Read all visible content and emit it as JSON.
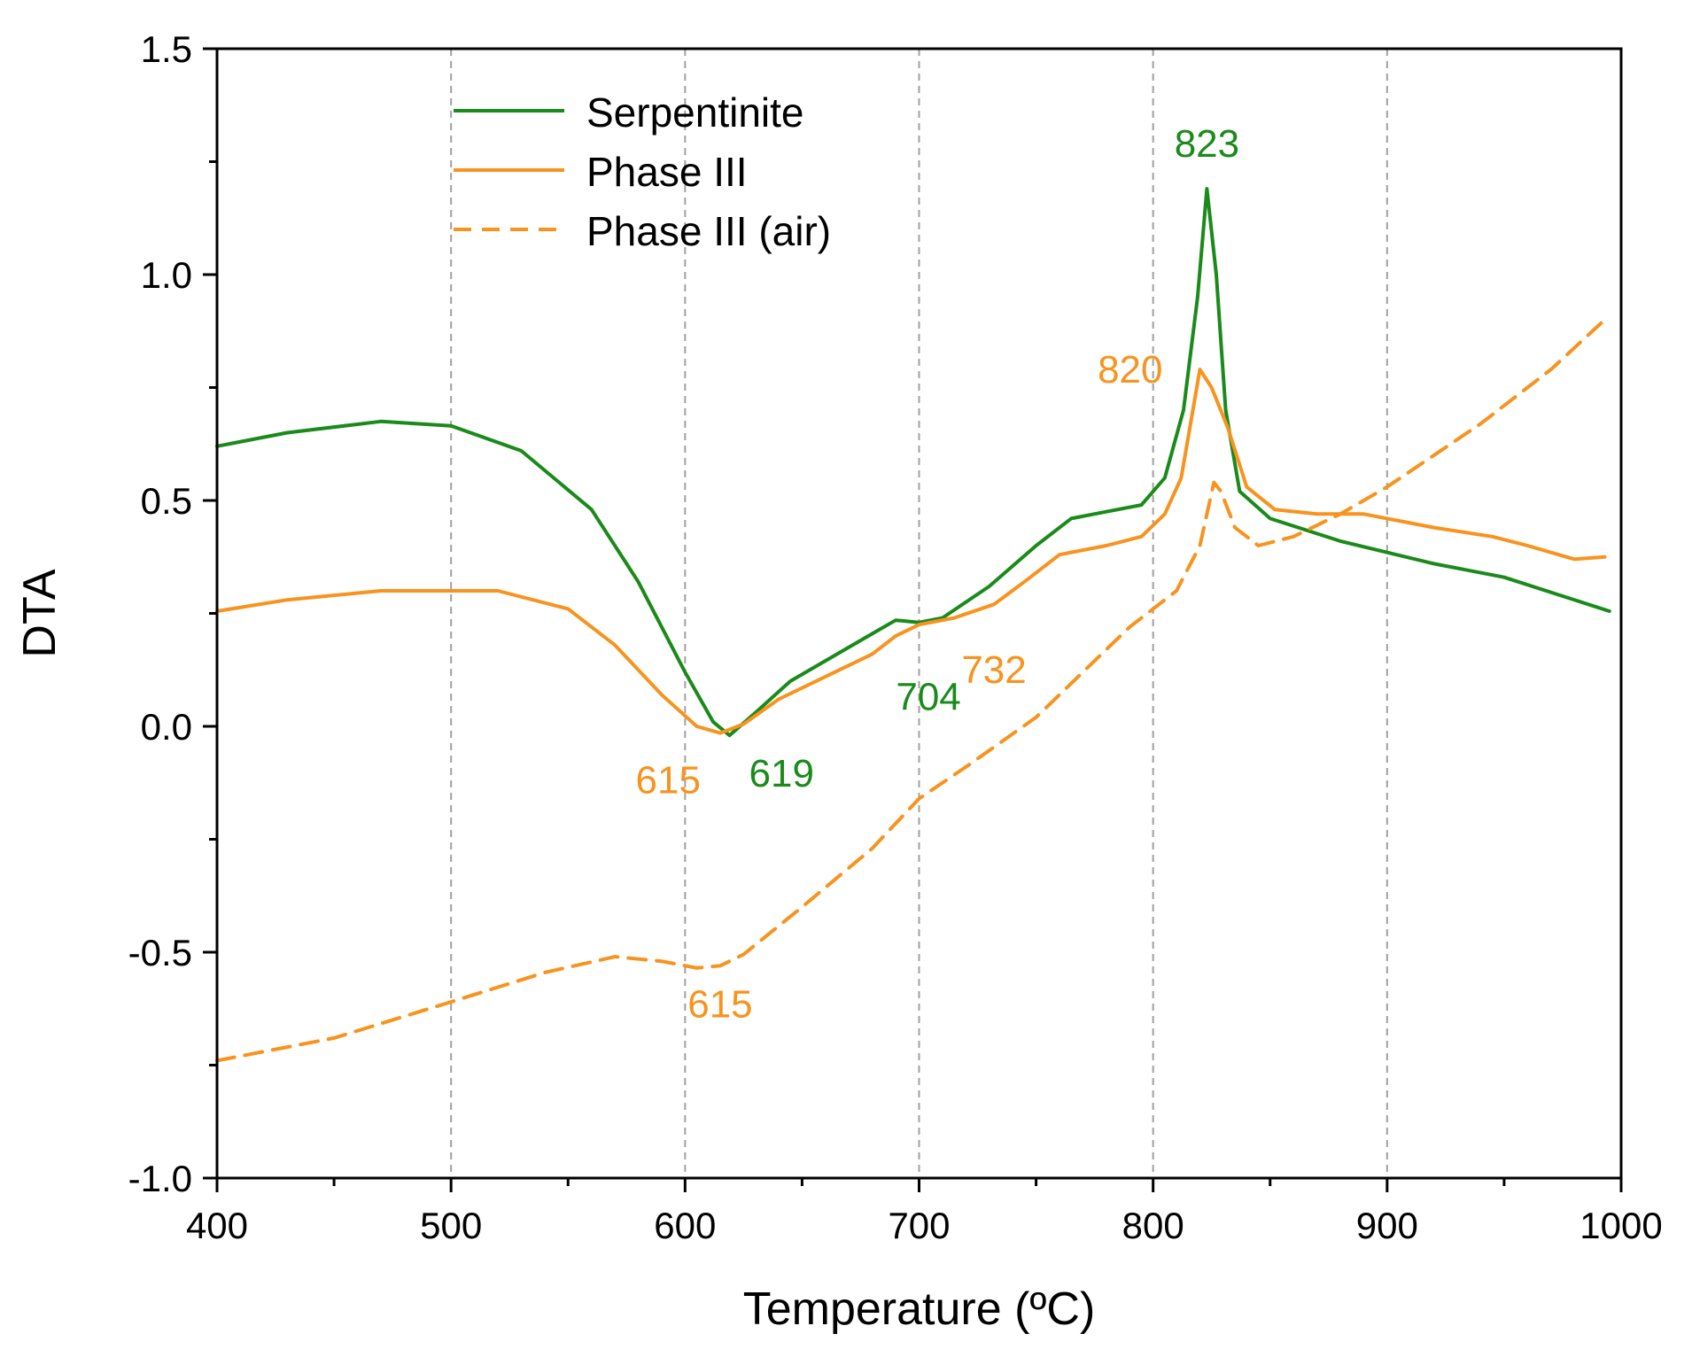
{
  "chart_data": {
    "type": "line",
    "title": "",
    "xlabel": "Temperature (ºC)",
    "ylabel": "DTA",
    "xlim": [
      400,
      1000
    ],
    "ylim": [
      -1.0,
      1.5
    ],
    "x_ticks": [
      400,
      500,
      600,
      700,
      800,
      900,
      1000
    ],
    "x_tick_labels": [
      "400",
      "500",
      "600",
      "700",
      "800",
      "900",
      "1000"
    ],
    "y_ticks": [
      -1.0,
      -0.5,
      0.0,
      0.5,
      1.0,
      1.5
    ],
    "y_tick_labels": [
      "-1.0",
      "-0.5",
      "0.0",
      "0.5",
      "1.0",
      "1.5"
    ],
    "vertical_grid": [
      500,
      600,
      700,
      800,
      900
    ],
    "legend_position": "top-left",
    "colors": {
      "green": "#1a8a1a",
      "orange": "#f7931e",
      "grid": "#a0a0a0",
      "axis": "#000000"
    },
    "series": [
      {
        "name": "Serpentinite",
        "color": "#1a8a1a",
        "dash": "solid",
        "points": [
          [
            400,
            0.62
          ],
          [
            430,
            0.65
          ],
          [
            470,
            0.675
          ],
          [
            500,
            0.665
          ],
          [
            530,
            0.61
          ],
          [
            560,
            0.48
          ],
          [
            580,
            0.32
          ],
          [
            600,
            0.12
          ],
          [
            612,
            0.01
          ],
          [
            619,
            -0.02
          ],
          [
            630,
            0.03
          ],
          [
            645,
            0.1
          ],
          [
            665,
            0.16
          ],
          [
            680,
            0.205
          ],
          [
            690,
            0.235
          ],
          [
            700,
            0.23
          ],
          [
            710,
            0.24
          ],
          [
            730,
            0.31
          ],
          [
            750,
            0.4
          ],
          [
            765,
            0.46
          ],
          [
            780,
            0.475
          ],
          [
            795,
            0.49
          ],
          [
            805,
            0.55
          ],
          [
            813,
            0.7
          ],
          [
            819,
            0.95
          ],
          [
            823,
            1.19
          ],
          [
            827,
            1.0
          ],
          [
            831,
            0.7
          ],
          [
            837,
            0.52
          ],
          [
            850,
            0.46
          ],
          [
            880,
            0.41
          ],
          [
            920,
            0.36
          ],
          [
            950,
            0.33
          ],
          [
            995,
            0.255
          ]
        ]
      },
      {
        "name": "Phase III",
        "color": "#f7931e",
        "dash": "solid",
        "points": [
          [
            400,
            0.255
          ],
          [
            430,
            0.28
          ],
          [
            470,
            0.3
          ],
          [
            520,
            0.3
          ],
          [
            550,
            0.26
          ],
          [
            570,
            0.18
          ],
          [
            590,
            0.07
          ],
          [
            605,
            0.0
          ],
          [
            615,
            -0.015
          ],
          [
            625,
            0.005
          ],
          [
            640,
            0.06
          ],
          [
            660,
            0.11
          ],
          [
            680,
            0.16
          ],
          [
            690,
            0.2
          ],
          [
            700,
            0.225
          ],
          [
            715,
            0.24
          ],
          [
            732,
            0.27
          ],
          [
            745,
            0.32
          ],
          [
            760,
            0.38
          ],
          [
            780,
            0.4
          ],
          [
            795,
            0.42
          ],
          [
            805,
            0.47
          ],
          [
            812,
            0.55
          ],
          [
            820,
            0.79
          ],
          [
            825,
            0.75
          ],
          [
            832,
            0.66
          ],
          [
            840,
            0.53
          ],
          [
            852,
            0.48
          ],
          [
            870,
            0.47
          ],
          [
            890,
            0.47
          ],
          [
            920,
            0.44
          ],
          [
            945,
            0.42
          ],
          [
            960,
            0.4
          ],
          [
            980,
            0.37
          ],
          [
            993,
            0.375
          ]
        ]
      },
      {
        "name": "Phase III (air)",
        "color": "#f7931e",
        "dash": "dashed",
        "points": [
          [
            400,
            -0.74
          ],
          [
            450,
            -0.69
          ],
          [
            500,
            -0.61
          ],
          [
            540,
            -0.545
          ],
          [
            570,
            -0.51
          ],
          [
            590,
            -0.52
          ],
          [
            605,
            -0.535
          ],
          [
            615,
            -0.53
          ],
          [
            625,
            -0.505
          ],
          [
            650,
            -0.4
          ],
          [
            680,
            -0.27
          ],
          [
            700,
            -0.16
          ],
          [
            720,
            -0.09
          ],
          [
            750,
            0.02
          ],
          [
            770,
            0.12
          ],
          [
            790,
            0.22
          ],
          [
            810,
            0.3
          ],
          [
            820,
            0.4
          ],
          [
            826,
            0.54
          ],
          [
            829,
            0.52
          ],
          [
            832,
            0.48
          ],
          [
            835,
            0.44
          ],
          [
            845,
            0.4
          ],
          [
            860,
            0.42
          ],
          [
            880,
            0.47
          ],
          [
            900,
            0.53
          ],
          [
            940,
            0.67
          ],
          [
            970,
            0.79
          ],
          [
            993,
            0.9
          ]
        ]
      }
    ],
    "annotations": [
      {
        "text": "823",
        "x": 823,
        "y": 1.19,
        "color": "#1a8a1a",
        "position": "above"
      },
      {
        "text": "820",
        "x": 820,
        "y": 0.79,
        "color": "#f7931e",
        "position": "left"
      },
      {
        "text": "704",
        "x": 704,
        "y": 0.15,
        "color": "#1a8a1a",
        "position": "below"
      },
      {
        "text": "732",
        "x": 732,
        "y": 0.21,
        "color": "#f7931e",
        "position": "below"
      },
      {
        "text": "619",
        "x": 619,
        "y": -0.02,
        "color": "#1a8a1a",
        "position": "below-right"
      },
      {
        "text": "615",
        "x": 615,
        "y": -0.015,
        "color": "#f7931e",
        "position": "below-left"
      },
      {
        "text": "615",
        "x": 615,
        "y": -0.53,
        "color": "#f7931e",
        "position": "below"
      }
    ]
  }
}
